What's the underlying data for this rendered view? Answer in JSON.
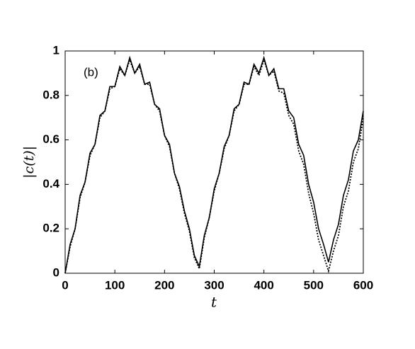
{
  "chart_data": {
    "type": "line",
    "annotation": "(b)",
    "xlabel": "t",
    "ylabel": "|c(t)|",
    "x": [
      0,
      10,
      20,
      30,
      40,
      50,
      60,
      70,
      80,
      90,
      100,
      110,
      120,
      130,
      140,
      150,
      160,
      170,
      180,
      190,
      200,
      210,
      220,
      230,
      240,
      250,
      260,
      270,
      280,
      290,
      300,
      310,
      320,
      330,
      340,
      350,
      360,
      370,
      380,
      390,
      400,
      410,
      420,
      430,
      440,
      450,
      460,
      470,
      480,
      490,
      500,
      510,
      520,
      530,
      540,
      550,
      560,
      570,
      580,
      590,
      600
    ],
    "series": [
      {
        "style": "solid",
        "color": "#000000",
        "values": [
          0,
          0.13,
          0.2,
          0.35,
          0.41,
          0.54,
          0.58,
          0.71,
          0.73,
          0.84,
          0.84,
          0.93,
          0.89,
          0.97,
          0.9,
          0.94,
          0.85,
          0.86,
          0.76,
          0.74,
          0.62,
          0.58,
          0.45,
          0.39,
          0.28,
          0.2,
          0.08,
          0.03,
          0.17,
          0.25,
          0.38,
          0.45,
          0.57,
          0.62,
          0.74,
          0.76,
          0.86,
          0.85,
          0.94,
          0.9,
          0.97,
          0.89,
          0.92,
          0.83,
          0.83,
          0.73,
          0.7,
          0.58,
          0.53,
          0.4,
          0.32,
          0.2,
          0.13,
          0.05,
          0.15,
          0.22,
          0.35,
          0.42,
          0.55,
          0.6,
          0.73
        ]
      },
      {
        "style": "dotted",
        "color": "#000000",
        "values": [
          0,
          0.12,
          0.2,
          0.34,
          0.41,
          0.53,
          0.58,
          0.7,
          0.73,
          0.83,
          0.84,
          0.92,
          0.89,
          0.96,
          0.9,
          0.93,
          0.85,
          0.85,
          0.76,
          0.73,
          0.62,
          0.57,
          0.45,
          0.38,
          0.27,
          0.19,
          0.07,
          0.02,
          0.16,
          0.25,
          0.37,
          0.45,
          0.56,
          0.62,
          0.73,
          0.76,
          0.85,
          0.85,
          0.93,
          0.89,
          0.96,
          0.89,
          0.91,
          0.82,
          0.81,
          0.71,
          0.67,
          0.55,
          0.49,
          0.36,
          0.27,
          0.15,
          0.08,
          0.01,
          0.1,
          0.17,
          0.3,
          0.37,
          0.5,
          0.56,
          0.7
        ]
      }
    ],
    "xlim": [
      0,
      600
    ],
    "ylim": [
      0,
      1
    ],
    "xticks": [
      0,
      100,
      200,
      300,
      400,
      500,
      600
    ],
    "yticks": [
      0,
      0.2,
      0.4,
      0.6,
      0.8,
      1
    ]
  }
}
